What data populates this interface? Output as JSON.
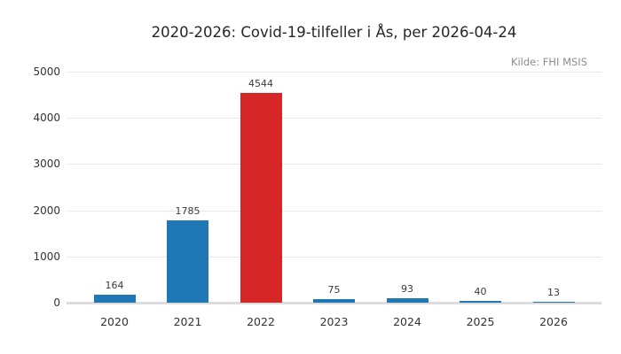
{
  "title": "2020-2026: Covid-19-tilfeller i Ås, per 2026-04-24",
  "source_note": "Kilde: FHI MSIS",
  "colors": {
    "bar_default": "#1f77b4",
    "bar_highlight": "#d62728",
    "gridline": "#e8e8e8",
    "baseline": "#dcdcdc",
    "title_text": "#262626",
    "tick_text": "#333333",
    "source_text": "#8c8c8c",
    "background": "#ffffff"
  },
  "chart_data": {
    "type": "bar",
    "title": "2020-2026: Covid-19-tilfeller i Ås, per 2026-04-24",
    "annotation": "Kilde: FHI MSIS",
    "categories": [
      "2020",
      "2021",
      "2022",
      "2023",
      "2024",
      "2025",
      "2026"
    ],
    "values": [
      164,
      1785,
      4544,
      75,
      93,
      40,
      13
    ],
    "bar_colors": [
      "#1f77b4",
      "#1f77b4",
      "#d62728",
      "#1f77b4",
      "#1f77b4",
      "#1f77b4",
      "#1f77b4"
    ],
    "value_labels": [
      164,
      1785,
      4544,
      75,
      93,
      40,
      13
    ],
    "xlabel": "",
    "ylabel": "",
    "ylim": [
      0,
      5000
    ],
    "yticks": [
      0,
      1000,
      2000,
      3000,
      4000,
      5000
    ],
    "grid": "horizontal",
    "legend": "none"
  }
}
